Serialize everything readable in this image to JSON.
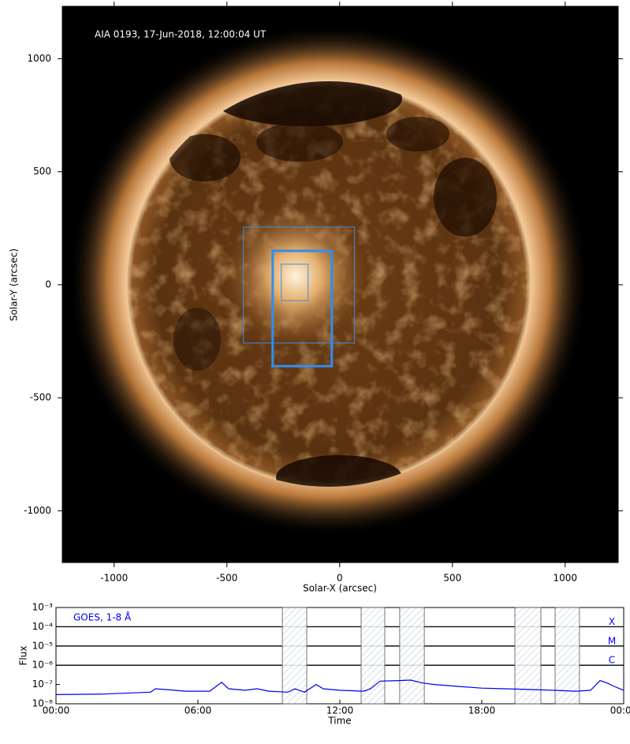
{
  "chart_data": [
    {
      "type": "image",
      "title": "AIA 0193, 17-Jun-2018, 12:00:04 UT",
      "xlabel": "Solar-X (arcsec)",
      "ylabel": "Solar-Y (arcsec)",
      "xlim": [
        -1230,
        1235
      ],
      "ylim": [
        -1229,
        1232
      ],
      "xticks": [
        -1000,
        -500,
        0,
        500,
        1000
      ],
      "yticks": [
        -1000,
        -500,
        0,
        500,
        1000
      ],
      "boxes": [
        {
          "color": "#3c8ee6",
          "linewidth": 1,
          "x": [
            -427,
            66
          ],
          "y": [
            -258,
            255
          ]
        },
        {
          "color": "#2f8ff0",
          "linewidth": 3,
          "x": [
            -297,
            -35
          ],
          "y": [
            -360,
            150
          ]
        },
        {
          "color": "#3c8ee6",
          "linewidth": 1,
          "x": [
            -259,
            -140
          ],
          "y": [
            -70,
            91
          ]
        }
      ]
    },
    {
      "type": "line",
      "xlabel": "Time",
      "ylabel": "Flux",
      "log": true,
      "xlim": [
        0,
        24
      ],
      "xticks": [
        {
          "value": 0,
          "label": "00:00"
        },
        {
          "value": 6,
          "label": "06:00"
        },
        {
          "value": 12,
          "label": "12:00"
        },
        {
          "value": 18,
          "label": "18:00"
        },
        {
          "value": 24,
          "label": "00:00"
        }
      ],
      "ylim": [
        1e-08,
        0.001
      ],
      "yticks": [
        {
          "value": 1e-08,
          "label": "10⁻⁸"
        },
        {
          "value": 1e-07,
          "label": "10⁻⁷"
        },
        {
          "value": 1e-06,
          "label": "10⁻⁶"
        },
        {
          "value": 1e-05,
          "label": "10⁻⁵"
        },
        {
          "value": 0.0001,
          "label": "10⁻⁴"
        },
        {
          "value": 0.001,
          "label": "10⁻³"
        }
      ],
      "class_levels": [
        {
          "value": 1e-06,
          "label": "C"
        },
        {
          "value": 1e-05,
          "label": "M"
        },
        {
          "value": 0.0001,
          "label": "X"
        }
      ],
      "spans": [
        [
          9.57,
          10.6
        ],
        [
          12.9,
          13.9
        ],
        [
          14.53,
          15.57
        ],
        [
          19.4,
          20.5
        ],
        [
          21.1,
          22.13
        ]
      ],
      "series": [
        {
          "name": "GOES, 1-8 Å",
          "color": "#0000ee",
          "x": [
            0,
            2,
            4,
            4.2,
            4.6,
            5.5,
            6.5,
            7,
            7.3,
            8,
            8.5,
            9,
            9.8,
            10.1,
            10.5,
            11,
            11.3,
            12,
            13,
            13.3,
            13.7,
            14.5,
            15,
            15.5,
            16,
            17,
            18,
            19,
            20,
            21,
            22,
            22.6,
            23,
            23.3,
            23.6,
            24
          ],
          "values": [
            3e-08,
            3.2e-08,
            4e-08,
            6e-08,
            5.5e-08,
            4.5e-08,
            4.5e-08,
            1.3e-07,
            6e-08,
            5e-08,
            6e-08,
            4.5e-08,
            4e-08,
            6e-08,
            4e-08,
            1e-07,
            6e-08,
            5e-08,
            4.5e-08,
            6e-08,
            1.5e-07,
            1.6e-07,
            1.7e-07,
            1.2e-07,
            1e-07,
            8e-08,
            6.5e-08,
            6e-08,
            5.5e-08,
            5e-08,
            4.5e-08,
            5e-08,
            1.6e-07,
            1.2e-07,
            8e-08,
            5e-08
          ]
        }
      ]
    }
  ]
}
